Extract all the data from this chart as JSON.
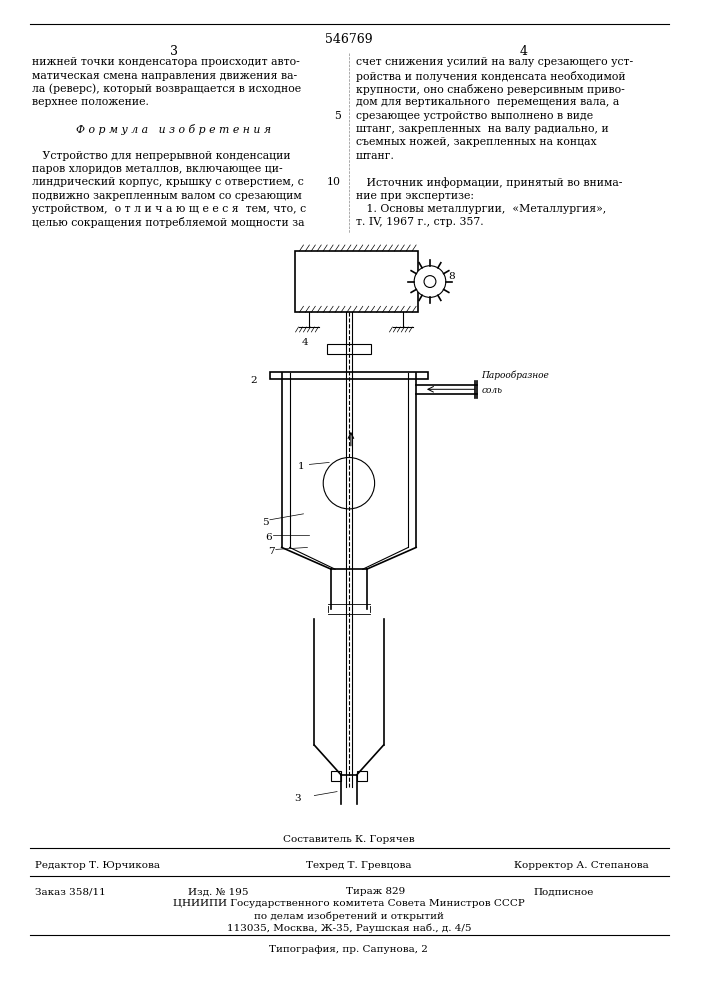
{
  "patent_number": "546769",
  "page_left": "3",
  "page_right": "4",
  "text_left_col": [
    "нижней точки конденсатора происходит авто-",
    "матическая смена направления движения ва-",
    "ла (реверс), который возвращается в исходное",
    "верхнее положение.",
    "",
    "Ф о р м у л а   и з о б р е т е н и я",
    "",
    "   Устройство для непрерывной конденсации",
    "паров хлоридов металлов, включающее ци-",
    "линдрический корпус, крышку с отверстием, с",
    "подвижно закрепленным валом со срезающим",
    "устройством,  о т л и ч а ю щ е е с я  тем, что, с",
    "целью сокращения потребляемой мощности за"
  ],
  "text_right_col": [
    "счет снижения усилий на валу срезающего уст-",
    "ройства и получения конденсата необходимой",
    "крупности, оно снабжено реверсивным приво-",
    "дом для вертикального  перемещения вала, а",
    "срезающее устройство выполнено в виде",
    "штанг, закрепленных  на валу радиально, и",
    "съемных ножей, закрепленных на концах",
    "штанг.",
    "",
    "   Источник информации, принятый во внима-",
    "ние при экспертизе:",
    "   1. Основы металлургии,  «Металлургия»,",
    "т. IV, 1967 г., стр. 357."
  ],
  "line5_number": "5",
  "line10_number": "10",
  "label_paroobr": "Парообразное",
  "label_sol": "соль",
  "footer_sostavitel": "Составитель К. Горячев",
  "footer_redaktor": "Редактор Т. Юрчикова",
  "footer_tehred": "Техред Т. Гревцова",
  "footer_korrektor": "Корректор А. Степанова",
  "footer_zakaz": "Заказ 358/11",
  "footer_izd": "Изд. № 195",
  "footer_tirazh": "Тираж 829",
  "footer_podpisnoe": "Подписное",
  "footer_cniipи": "ЦНИИПИ Государственного комитета Совета Министров СССР",
  "footer_po_delam": "по делам изобретений и открытий",
  "footer_address": "113035, Москва, Ж-35, Раушская наб., д. 4/5",
  "footer_tipografiya": "Типография, пр. Сапунова, 2",
  "bg_color": "#ffffff",
  "text_color": "#000000",
  "line_color": "#000000"
}
